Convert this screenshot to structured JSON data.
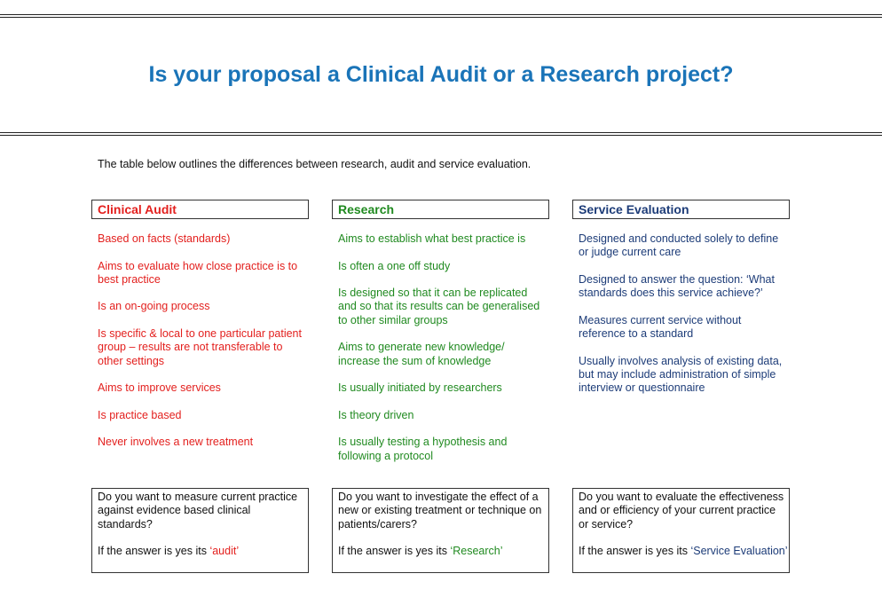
{
  "title": "Is your proposal a Clinical Audit or a Research project?",
  "intro": "The table below outlines the differences between research, audit and service evaluation.",
  "columns": [
    {
      "heading": "Clinical Audit",
      "items": [
        "Based on facts (standards)",
        "Aims to evaluate how close practice is to best practice",
        "Is an on-going process",
        "Is specific & local to one particular patient group – results are not transferable to other settings",
        "Aims to improve services",
        "Is practice based",
        "Never involves a new treatment"
      ],
      "question": "Do you want to measure current practice against evidence based clinical standards?",
      "answer_prefix": "If the answer is yes its",
      "answer_term": "‘audit’"
    },
    {
      "heading": "Research",
      "items": [
        "Aims to establish what best practice is",
        "Is often a one off study",
        "Is designed so that it can be replicated and so that its results can be generalised to other similar groups",
        "Aims to generate new knowledge/ increase the sum of knowledge",
        "Is usually initiated by researchers",
        "Is theory driven",
        "Is usually testing a hypothesis and following a protocol"
      ],
      "question": "Do you want to investigate the effect of a new or existing treatment or technique on patients/carers?",
      "answer_prefix": "If the answer is yes its",
      "answer_term": "‘Research’"
    },
    {
      "heading": "Service Evaluation",
      "items": [
        "Designed and conducted solely to define or judge current care",
        "Designed to answer the question: ‘What standards does this service achieve?’",
        "Measures current service without reference to a standard",
        "Usually involves analysis of existing data, but may include administration of simple interview or questionnaire"
      ],
      "question": "Do you want to evaluate the effectiveness and or efficiency of your current practice or service?",
      "answer_prefix": "If the answer is yes its",
      "answer_term": "‘Service Evaluation’"
    }
  ]
}
